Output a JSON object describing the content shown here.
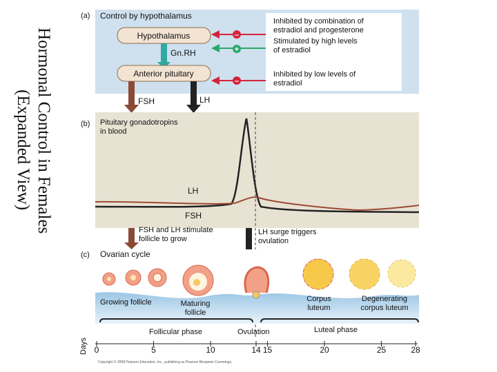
{
  "title_lines": [
    "Hormonal Control in Females",
    "(Expanded View)"
  ],
  "panel_a": {
    "label": "(a)",
    "heading": "Control by hypothalamus",
    "hypothalamus": "Hypothalamus",
    "gnrh": "Gn.RH",
    "anterior_pituitary": "Anterior pituitary",
    "fsh": "FSH",
    "lh": "LH",
    "signs": [
      "–",
      "+",
      "–"
    ],
    "notes": [
      [
        "Inhibited by combination of",
        "estradiol and progesterone"
      ],
      [
        "Stimulated by high levels",
        "of estradiol"
      ],
      [
        "Inhibited by low levels of",
        "estradiol"
      ]
    ]
  },
  "panel_b": {
    "label": "(b)",
    "heading": [
      "Pituitary gonadotropins",
      "in blood"
    ],
    "lh": "LH",
    "fsh": "FSH",
    "note_left": [
      "FSH and LH stimulate",
      "follicle to grow"
    ],
    "note_right": [
      "LH surge triggers",
      "ovulation"
    ]
  },
  "panel_c": {
    "label": "(c)",
    "heading": "Ovarian cycle",
    "growing": "Growing follicle",
    "maturing": [
      "Maturing",
      "follicle"
    ],
    "corpus_luteum": [
      "Corpus",
      "luteum"
    ],
    "degenerating": [
      "Degenerating",
      "corpus luteum"
    ],
    "follicular_phase": "Follicular phase",
    "ovulation": "Ovulation",
    "luteal_phase": "Luteal phase"
  },
  "days": {
    "label": "Days",
    "ticks": [
      0,
      5,
      10,
      14,
      15,
      20,
      25,
      28
    ]
  },
  "copyright": "Copyright © 2008 Pearson Education, Inc., publishing as Pearson Benjamin Cummings."
}
